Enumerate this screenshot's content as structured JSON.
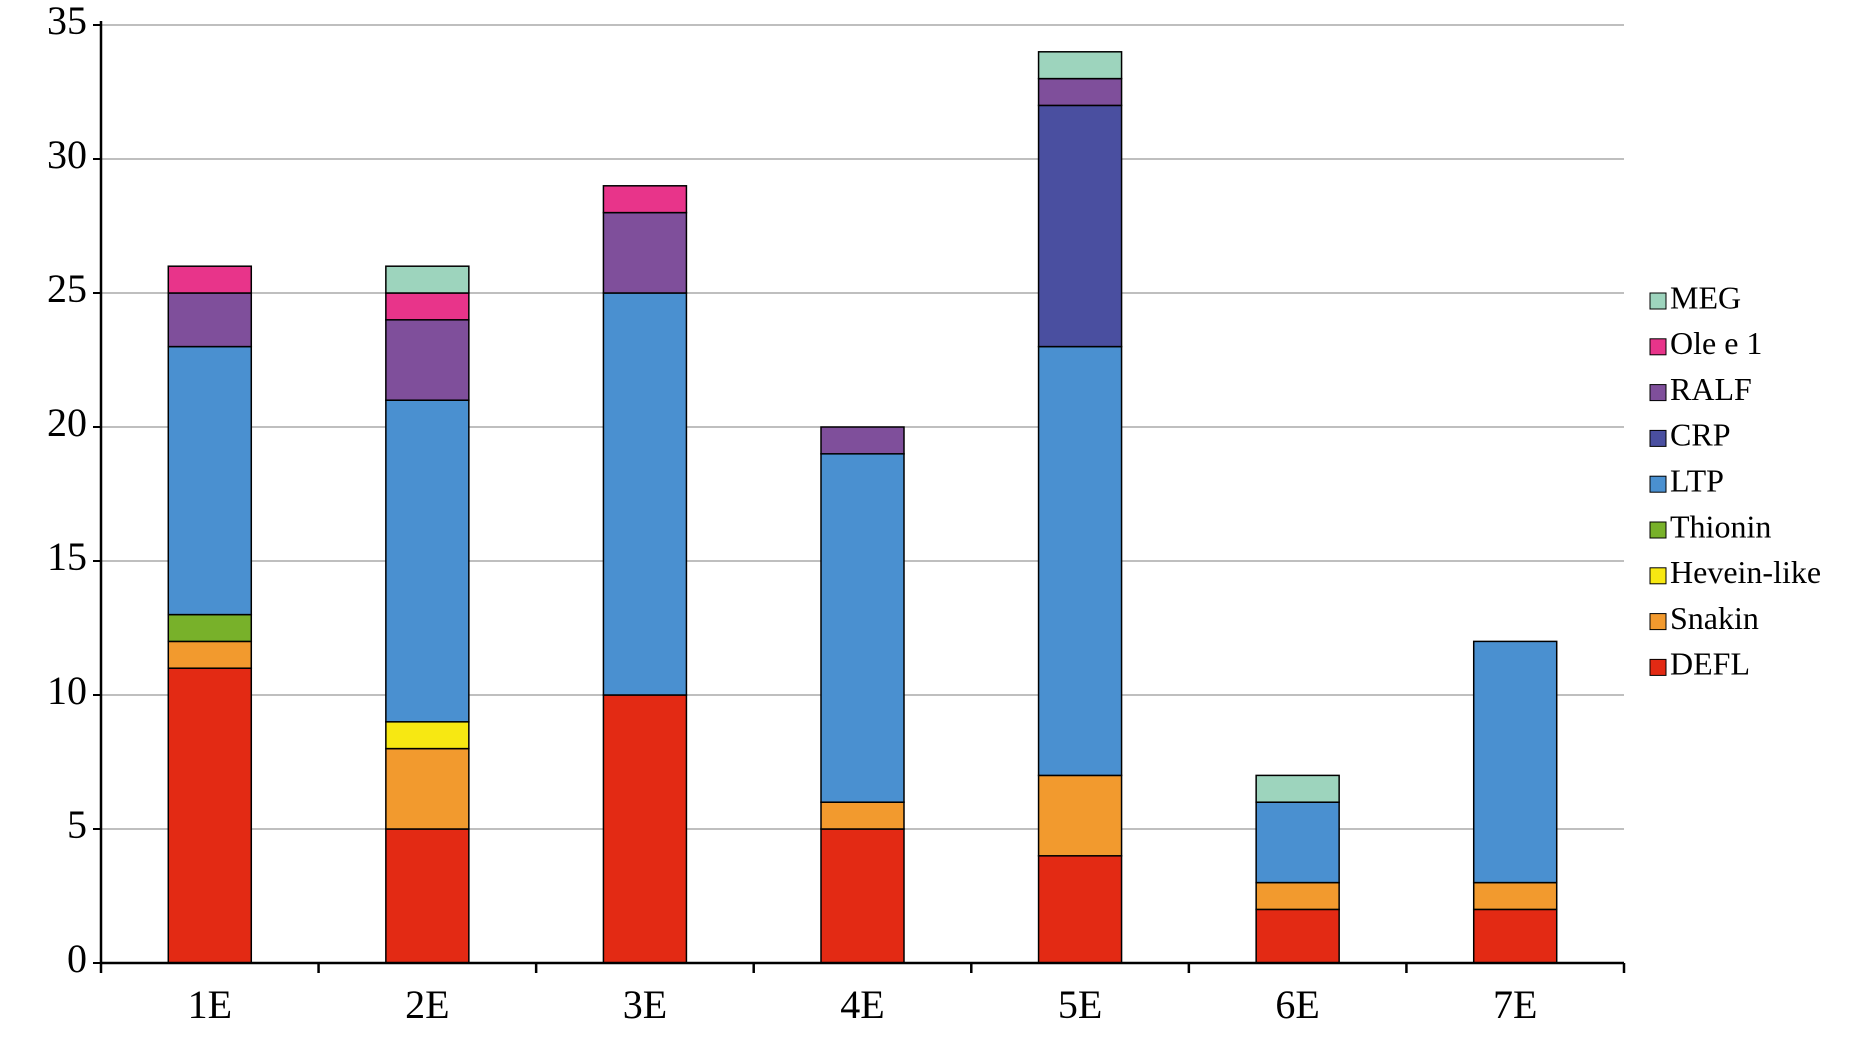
{
  "chart_data": {
    "type": "stacked_bar",
    "categories": [
      "1E",
      "2E",
      "3E",
      "4E",
      "5E",
      "6E",
      "7E"
    ],
    "series": [
      {
        "name": "DEFL",
        "color": "#e32a14",
        "values": [
          11,
          5,
          10,
          5,
          4,
          2,
          2
        ]
      },
      {
        "name": "Snakin",
        "color": "#f29a2e",
        "values": [
          1,
          3,
          0,
          1,
          3,
          1,
          1
        ]
      },
      {
        "name": "Hevein-like",
        "color": "#f7e812",
        "values": [
          0,
          1,
          0,
          0,
          0,
          0,
          0
        ]
      },
      {
        "name": "Thionin",
        "color": "#78b12a",
        "values": [
          1,
          0,
          0,
          0,
          0,
          0,
          0
        ]
      },
      {
        "name": "LTP",
        "color": "#4a90d0",
        "values": [
          10,
          12,
          15,
          13,
          16,
          3,
          9
        ]
      },
      {
        "name": "CRP",
        "color": "#4a4fa0",
        "values": [
          0,
          0,
          0,
          0,
          9,
          0,
          0
        ]
      },
      {
        "name": "RALF",
        "color": "#7f4f9b",
        "values": [
          2,
          3,
          3,
          1,
          1,
          0,
          0
        ]
      },
      {
        "name": "Ole e 1",
        "color": "#e8348a",
        "values": [
          1,
          1,
          1,
          0,
          0,
          0,
          0
        ]
      },
      {
        "name": "MEG",
        "color": "#9dd4bd",
        "values": [
          0,
          1,
          0,
          0,
          1,
          1,
          0
        ]
      }
    ],
    "ylim": [
      0,
      35
    ],
    "yticks": [
      0,
      5,
      10,
      15,
      20,
      25,
      30,
      35
    ],
    "grid": true,
    "legend": "right"
  }
}
